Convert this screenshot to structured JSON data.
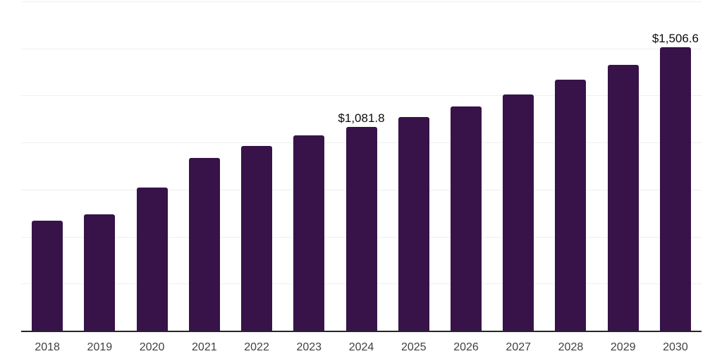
{
  "chart_data": {
    "type": "bar",
    "title": "",
    "xlabel": "",
    "ylabel": "",
    "categories": [
      "2018",
      "2019",
      "2020",
      "2021",
      "2022",
      "2023",
      "2024",
      "2025",
      "2026",
      "2027",
      "2028",
      "2029",
      "2030"
    ],
    "values": [
      585,
      620,
      761,
      918,
      982,
      1038,
      1081.8,
      1135,
      1192,
      1255,
      1333,
      1413,
      1506.6
    ],
    "point_labels": [
      "",
      "",
      "",
      "",
      "",
      "",
      "$1,081.8",
      "",
      "",
      "",
      "",
      "",
      "$1,506.6"
    ],
    "ylim": [
      0,
      1750
    ],
    "gridline_step": 250,
    "grid": "horizontal-only",
    "legend": "none",
    "colors": {
      "bar": "#371349",
      "axis_line": "#262626",
      "tick_label": "#3f3f44",
      "value_label": "#0b0b0b",
      "gridline": "#efefef",
      "background": "#ffffff"
    }
  }
}
